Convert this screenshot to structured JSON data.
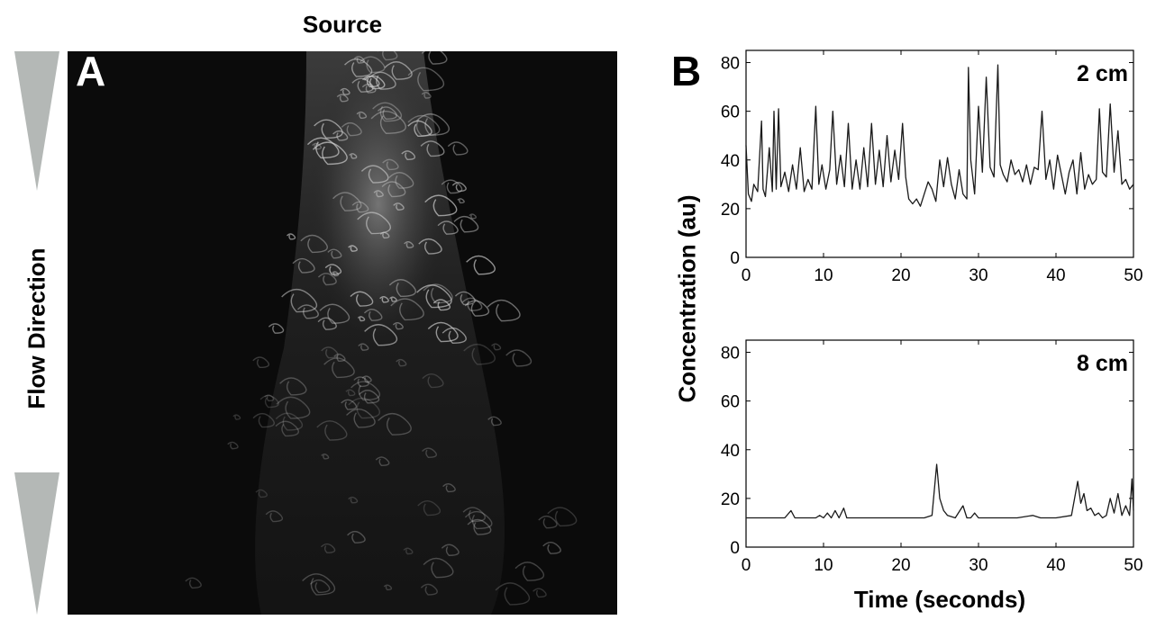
{
  "figure": {
    "source_label": "Source",
    "flow_label": "Flow Direction",
    "panel_a_letter": "A",
    "panel_b_letter": "B",
    "ylabel": "Concentration (au)",
    "xlabel": "Time (seconds)"
  },
  "colors": {
    "arrow": "#b4b8b6",
    "line": "#1a1a1a",
    "image_bg": "#0b0b0b",
    "plume": "#d8d8d8"
  },
  "chart_data": [
    {
      "type": "line",
      "annotation": "2 cm",
      "xlim": [
        0,
        50
      ],
      "ylim": [
        0,
        85
      ],
      "xticks": [
        0,
        10,
        20,
        30,
        40,
        50
      ],
      "yticks": [
        0,
        20,
        40,
        60,
        80
      ],
      "grid": false,
      "x": [
        0,
        0.3,
        0.7,
        1,
        1.5,
        2,
        2.2,
        2.5,
        3,
        3.4,
        3.6,
        3.9,
        4.2,
        4.5,
        5,
        5.5,
        6,
        6.5,
        7,
        7.5,
        8,
        8.5,
        9,
        9.4,
        9.8,
        10.3,
        10.8,
        11.2,
        11.7,
        12.2,
        12.7,
        13.2,
        13.7,
        14.2,
        14.7,
        15.2,
        15.7,
        16.2,
        16.7,
        17.2,
        17.7,
        18.2,
        18.7,
        19.2,
        19.7,
        20.2,
        20.6,
        21,
        21.5,
        22,
        22.5,
        23,
        23.5,
        24,
        24.5,
        25,
        25.5,
        26,
        26.5,
        27,
        27.5,
        28,
        28.5,
        28.7,
        29,
        29.5,
        30,
        30.5,
        31,
        31.5,
        32,
        32.5,
        32.8,
        33.2,
        33.7,
        34.2,
        34.7,
        35.2,
        35.7,
        36.2,
        36.7,
        37.2,
        37.7,
        38.2,
        38.7,
        39.2,
        39.7,
        40.2,
        40.7,
        41.2,
        41.7,
        42.2,
        42.7,
        43.2,
        43.7,
        44.2,
        44.7,
        45.2,
        45.6,
        46,
        46.5,
        47,
        47.5,
        48,
        48.5,
        49,
        49.5,
        50
      ],
      "y": [
        46,
        26,
        23,
        30,
        27,
        56,
        28,
        25,
        45,
        27,
        60,
        28,
        61,
        29,
        35,
        27,
        38,
        28,
        45,
        27,
        32,
        28,
        62,
        30,
        38,
        28,
        36,
        60,
        30,
        42,
        29,
        55,
        28,
        40,
        28,
        45,
        29,
        55,
        30,
        44,
        29,
        50,
        31,
        44,
        32,
        55,
        33,
        24,
        22,
        24,
        21,
        26,
        31,
        28,
        23,
        40,
        29,
        41,
        30,
        24,
        36,
        26,
        24,
        78,
        40,
        26,
        62,
        35,
        74,
        37,
        33,
        79,
        38,
        34,
        31,
        40,
        34,
        36,
        31,
        38,
        30,
        37,
        36,
        60,
        32,
        40,
        28,
        42,
        34,
        26,
        35,
        40,
        26,
        43,
        28,
        34,
        30,
        32,
        61,
        35,
        33,
        63,
        35,
        52,
        30,
        32,
        28,
        30
      ],
      "title": ""
    },
    {
      "type": "line",
      "annotation": "8 cm",
      "xlim": [
        0,
        50
      ],
      "ylim": [
        0,
        85
      ],
      "xticks": [
        0,
        10,
        20,
        30,
        40,
        50
      ],
      "yticks": [
        0,
        20,
        40,
        60,
        80
      ],
      "grid": false,
      "x": [
        0,
        5,
        5.8,
        6.3,
        7,
        9,
        9.5,
        10,
        10.5,
        11,
        11.5,
        12,
        12.6,
        13,
        13.5,
        20,
        23,
        24,
        24.6,
        25,
        25.5,
        26,
        27,
        28,
        28.5,
        29,
        29.5,
        30,
        35,
        37,
        38,
        40,
        42,
        42.8,
        43.2,
        43.6,
        44,
        44.5,
        45,
        45.5,
        46,
        46.5,
        47,
        47.5,
        48,
        48.5,
        49,
        49.5,
        49.8,
        50
      ],
      "y": [
        12,
        12,
        15,
        12,
        12,
        12,
        13,
        12,
        14,
        12,
        15,
        12,
        16,
        12,
        12,
        12,
        12,
        13,
        34,
        20,
        15,
        13,
        12,
        17,
        12,
        12,
        14,
        12,
        12,
        13,
        12,
        12,
        13,
        27,
        18,
        22,
        15,
        16,
        13,
        14,
        12,
        13,
        20,
        14,
        22,
        13,
        17,
        13,
        28,
        15
      ],
      "title": ""
    }
  ]
}
